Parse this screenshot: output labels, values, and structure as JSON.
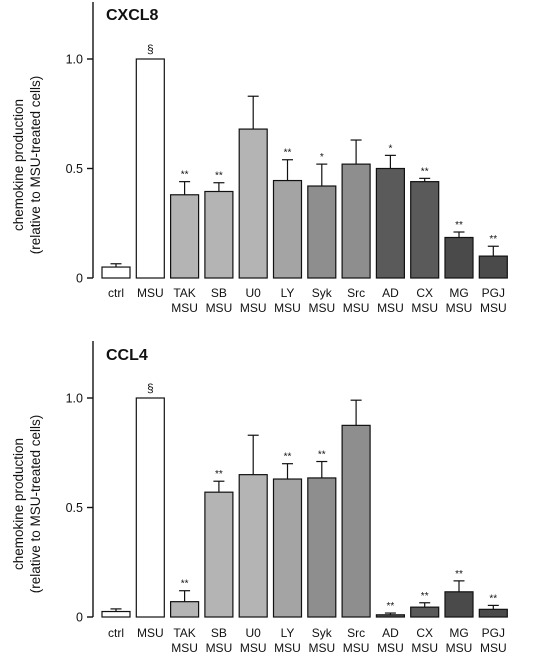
{
  "chart_data": [
    {
      "type": "bar",
      "title": "CXCL8",
      "ylabel_line1": "chemokine production",
      "ylabel_line2": "(relative to MSU-treated cells)",
      "ylim": [
        0,
        1.1
      ],
      "yticks": [
        "0",
        "0.5",
        "1.0"
      ],
      "ytick_values": [
        0,
        0.5,
        1.0
      ],
      "categories": [
        {
          "line1": "ctrl",
          "line2": ""
        },
        {
          "line1": "MSU",
          "line2": ""
        },
        {
          "line1": "TAK",
          "line2": "MSU"
        },
        {
          "line1": "SB",
          "line2": "MSU"
        },
        {
          "line1": "U0",
          "line2": "MSU"
        },
        {
          "line1": "LY",
          "line2": "MSU"
        },
        {
          "line1": "Syk",
          "line2": "MSU"
        },
        {
          "line1": "Src",
          "line2": "MSU"
        },
        {
          "line1": "AD",
          "line2": "MSU"
        },
        {
          "line1": "CX",
          "line2": "MSU"
        },
        {
          "line1": "MG",
          "line2": "MSU"
        },
        {
          "line1": "PGJ",
          "line2": "MSU"
        }
      ],
      "values": [
        0.05,
        1.0,
        0.38,
        0.395,
        0.68,
        0.445,
        0.42,
        0.52,
        0.5,
        0.44,
        0.185,
        0.1
      ],
      "errors": [
        0.015,
        0,
        0.06,
        0.04,
        0.15,
        0.095,
        0.1,
        0.11,
        0.06,
        0.015,
        0.025,
        0.045
      ],
      "significance": [
        "",
        "§",
        "**",
        "**",
        "",
        "**",
        "*",
        "",
        "*",
        "**",
        "**",
        "**"
      ],
      "bar_colors": [
        "#ffffff",
        "#ffffff",
        "#b4b4b4",
        "#b4b4b4",
        "#b4b4b4",
        "#a4a4a4",
        "#8e8e8e",
        "#8e8e8e",
        "#5a5a5a",
        "#5a5a5a",
        "#4a4a4a",
        "#4a4a4a"
      ]
    },
    {
      "type": "bar",
      "title": "CCL4",
      "ylabel_line1": "chemokine production",
      "ylabel_line2": "(relative to MSU-treated cells)",
      "ylim": [
        0,
        1.1
      ],
      "yticks": [
        "0",
        "0.5",
        "1.0"
      ],
      "ytick_values": [
        0,
        0.5,
        1.0
      ],
      "categories": [
        {
          "line1": "ctrl",
          "line2": ""
        },
        {
          "line1": "MSU",
          "line2": ""
        },
        {
          "line1": "TAK",
          "line2": "MSU"
        },
        {
          "line1": "SB",
          "line2": "MSU"
        },
        {
          "line1": "U0",
          "line2": "MSU"
        },
        {
          "line1": "LY",
          "line2": "MSU"
        },
        {
          "line1": "Syk",
          "line2": "MSU"
        },
        {
          "line1": "Src",
          "line2": "MSU"
        },
        {
          "line1": "AD",
          "line2": "MSU"
        },
        {
          "line1": "CX",
          "line2": "MSU"
        },
        {
          "line1": "MG",
          "line2": "MSU"
        },
        {
          "line1": "PGJ",
          "line2": "MSU"
        }
      ],
      "values": [
        0.025,
        1.0,
        0.07,
        0.57,
        0.65,
        0.63,
        0.635,
        0.875,
        0.01,
        0.045,
        0.115,
        0.035
      ],
      "errors": [
        0.012,
        0,
        0.05,
        0.05,
        0.18,
        0.07,
        0.075,
        0.115,
        0.008,
        0.02,
        0.05,
        0.018
      ],
      "significance": [
        "",
        "§",
        "**",
        "**",
        "",
        "**",
        "**",
        "",
        "**",
        "**",
        "**",
        "**"
      ],
      "bar_colors": [
        "#ffffff",
        "#ffffff",
        "#b4b4b4",
        "#b4b4b4",
        "#b4b4b4",
        "#a4a4a4",
        "#8e8e8e",
        "#8e8e8e",
        "#5a5a5a",
        "#5a5a5a",
        "#4a4a4a",
        "#4a4a4a"
      ]
    }
  ]
}
